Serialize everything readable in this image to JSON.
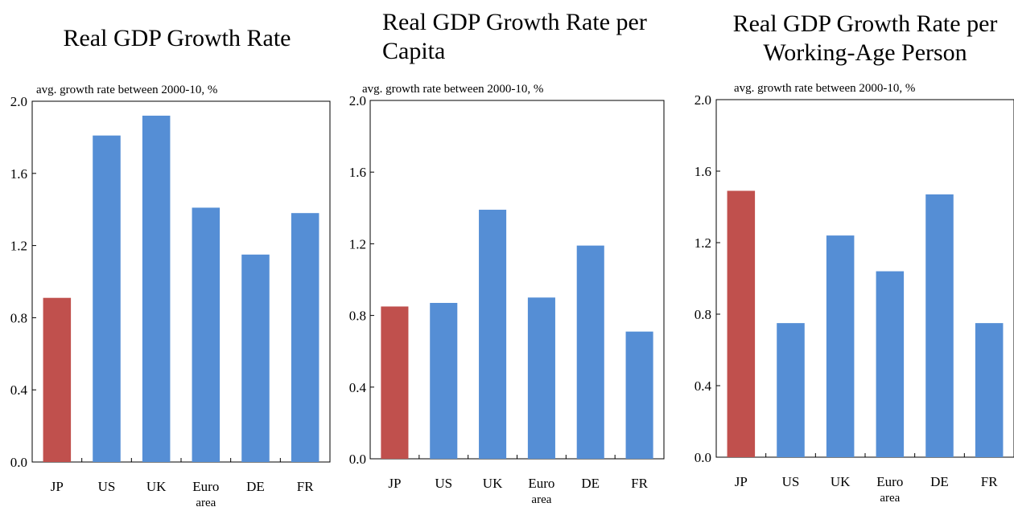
{
  "colors": {
    "highlight": "#C0504D",
    "default": "#558ED5",
    "axis": "#000000"
  },
  "chart_data": [
    {
      "type": "bar",
      "title": "Real GDP Growth Rate",
      "subtitle": "avg. growth rate between 2000-10, %",
      "categories": [
        [
          "JP"
        ],
        [
          "US"
        ],
        [
          "UK"
        ],
        [
          "Euro",
          "area"
        ],
        [
          "DE"
        ],
        [
          "FR"
        ]
      ],
      "values": [
        0.91,
        1.81,
        1.92,
        1.41,
        1.15,
        1.38
      ],
      "highlight_index": 0,
      "ylim": [
        0,
        2.0
      ],
      "yticks": [
        "0.0",
        "0.4",
        "0.8",
        "1.2",
        "1.6",
        "2.0"
      ],
      "grid": false
    },
    {
      "type": "bar",
      "title": "Real GDP Growth Rate per Capita",
      "subtitle": "avg. growth rate between 2000-10, %",
      "categories": [
        [
          "JP"
        ],
        [
          "US"
        ],
        [
          "UK"
        ],
        [
          "Euro",
          "area"
        ],
        [
          "DE"
        ],
        [
          "FR"
        ]
      ],
      "values": [
        0.85,
        0.87,
        1.39,
        0.9,
        1.19,
        0.71
      ],
      "highlight_index": 0,
      "ylim": [
        0,
        2.0
      ],
      "yticks": [
        "0.0",
        "0.4",
        "0.8",
        "1.2",
        "1.6",
        "2.0"
      ],
      "grid": false
    },
    {
      "type": "bar",
      "title": "Real GDP Growth Rate per Working-Age Person",
      "subtitle": "avg. growth rate between 2000-10, %",
      "categories": [
        [
          "JP"
        ],
        [
          "US"
        ],
        [
          "UK"
        ],
        [
          "Euro",
          "area"
        ],
        [
          "DE"
        ],
        [
          "FR"
        ]
      ],
      "values": [
        1.49,
        0.75,
        1.24,
        1.04,
        1.47,
        0.75
      ],
      "highlight_index": 0,
      "ylim": [
        0,
        2.0
      ],
      "yticks": [
        "0.0",
        "0.4",
        "0.8",
        "1.2",
        "1.6",
        "2.0"
      ],
      "grid": false
    }
  ]
}
